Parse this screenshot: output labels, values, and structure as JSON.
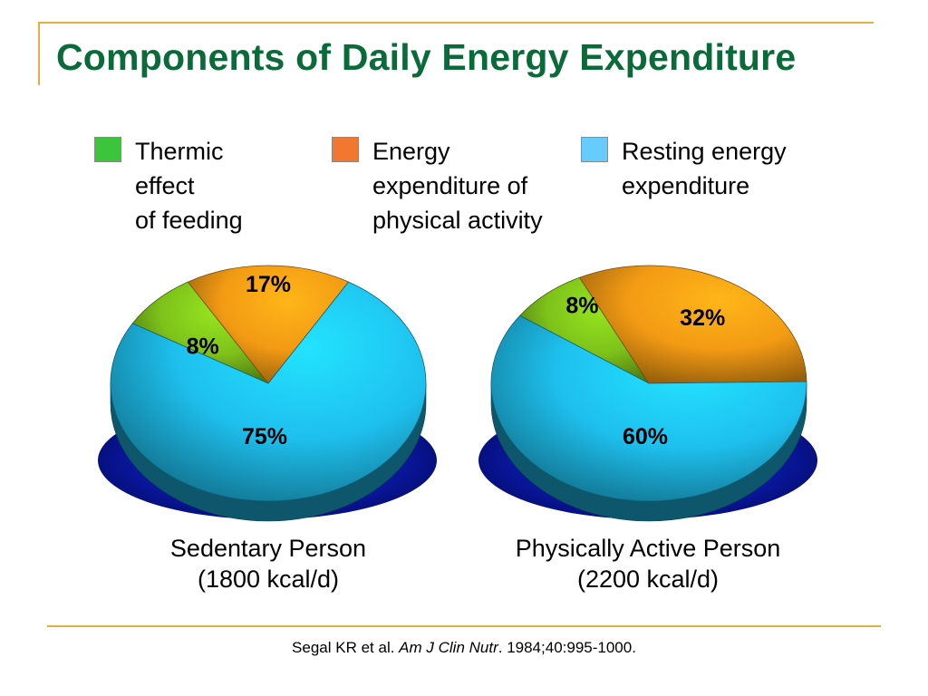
{
  "slide": {
    "title": "Components of Daily Energy Expenditure",
    "citation": {
      "authors": "Segal KR et al. ",
      "journal": "Am J Clin Nutr",
      "details": ". 1984;40:995-1000."
    }
  },
  "legend": [
    {
      "label": "Thermic\neffect\nof feeding",
      "color": "#3cc43c"
    },
    {
      "label": "Energy\nexpenditure of\nphysical activity",
      "color": "#f07830"
    },
    {
      "label": "Resting energy\nexpenditure",
      "color": "#66ccff"
    }
  ],
  "chart_data": [
    {
      "type": "pie",
      "title_line1": "Sedentary Person",
      "title_line2": "(1800 kcal/d)",
      "slices": [
        {
          "name": "Thermic effect of feeding",
          "value": 8,
          "label": "8%",
          "color": "#7ec21a"
        },
        {
          "name": "Energy expenditure of physical activity",
          "value": 17,
          "label": "17%",
          "color": "#f29a14"
        },
        {
          "name": "Resting energy expenditure",
          "value": 75,
          "label": "75%",
          "color": "#1ec0ee"
        }
      ]
    },
    {
      "type": "pie",
      "title_line1": "Physically Active Person",
      "title_line2": "(2200 kcal/d)",
      "slices": [
        {
          "name": "Thermic effect of feeding",
          "value": 8,
          "label": "8%",
          "color": "#7ec21a"
        },
        {
          "name": "Energy expenditure of physical activity",
          "value": 32,
          "label": "32%",
          "color": "#f29a14"
        },
        {
          "name": "Resting energy expenditure",
          "value": 60,
          "label": "60%",
          "color": "#1ec0ee"
        }
      ]
    }
  ]
}
